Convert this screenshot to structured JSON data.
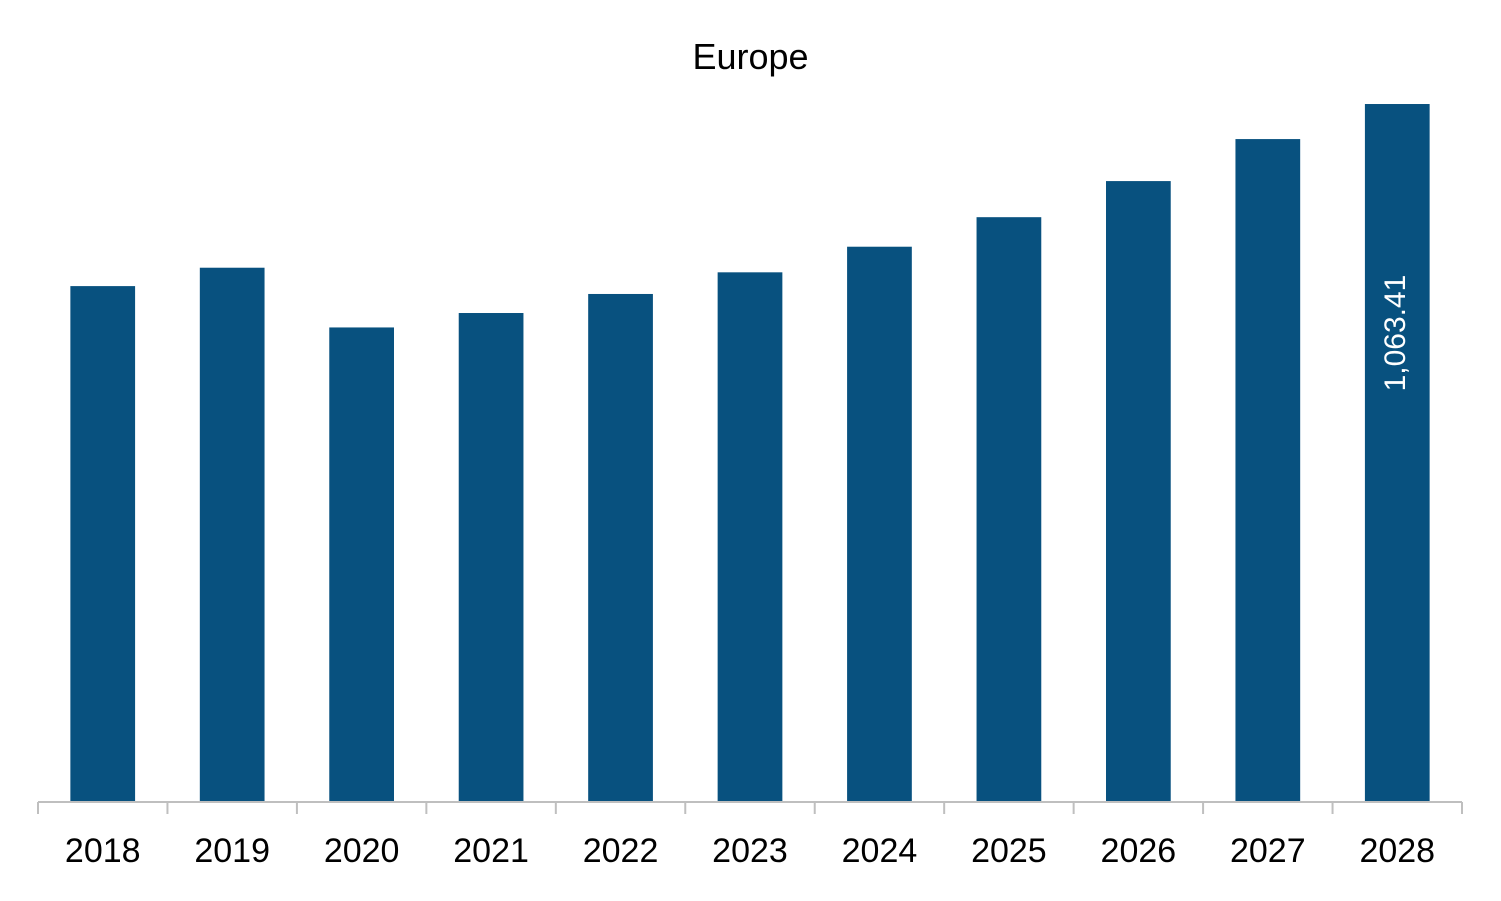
{
  "chart_data": {
    "type": "bar",
    "title": "Europe",
    "categories": [
      "2018",
      "2019",
      "2020",
      "2021",
      "2022",
      "2023",
      "2024",
      "2025",
      "2026",
      "2027",
      "2028"
    ],
    "values": [
      786.0,
      814.0,
      723.0,
      745.0,
      774.0,
      807.0,
      846.0,
      891.0,
      946.0,
      1010.0,
      1063.41
    ],
    "data_labels": [
      null,
      null,
      null,
      null,
      null,
      null,
      null,
      null,
      null,
      null,
      "1,063.41"
    ],
    "xlabel": "",
    "ylabel": "",
    "ylim": [
      0,
      1100
    ],
    "grid": false,
    "legend": "none",
    "colors": {
      "bar": "#08517F",
      "axis": "#BFBFBF",
      "label_inside": "#FFFFFF",
      "tick_text": "#000000"
    }
  }
}
